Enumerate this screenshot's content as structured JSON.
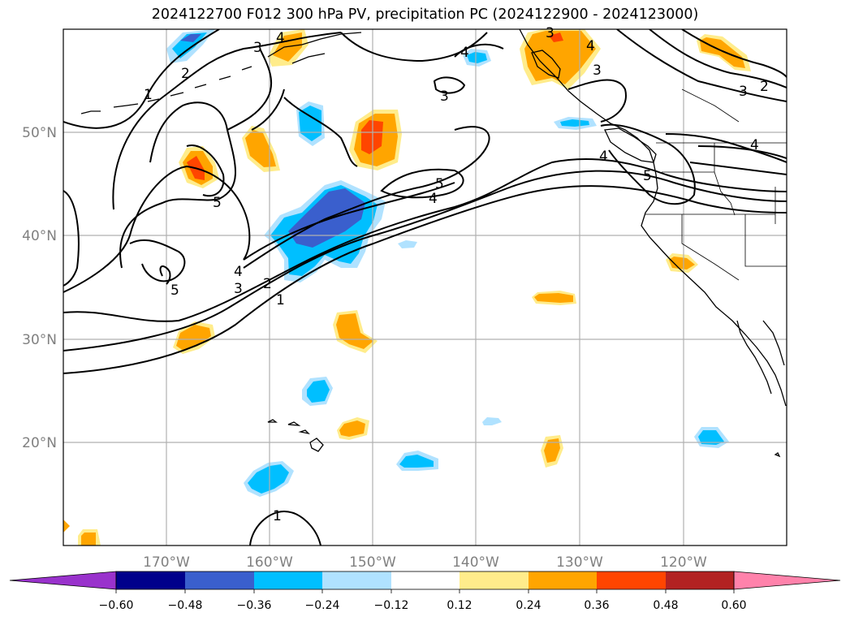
{
  "title": "2024122700 F012 300 hPa PV, precipitation PC (2024122900 - 2024123000)",
  "lon_ticks": [
    "170°W",
    "160°W",
    "150°W",
    "140°W",
    "130°W",
    "120°W"
  ],
  "lat_ticks": [
    "50°N",
    "40°N",
    "30°N",
    "20°N"
  ],
  "colorbar": {
    "colors": [
      "#9932cc",
      "#00008b",
      "#3a5fcd",
      "#00bfff",
      "#b0e2ff",
      "#ffffff",
      "#ffec8b",
      "#ffa500",
      "#ff4500",
      "#b22222",
      "#ff82ab"
    ],
    "labels": [
      "−0.60",
      "−0.48",
      "−0.36",
      "−0.24",
      "−0.12",
      "0.12",
      "0.24",
      "0.36",
      "0.48",
      "0.60"
    ]
  },
  "pv_labels": [
    "1",
    "2",
    "3",
    "4",
    "5",
    "3",
    "2",
    "1",
    "5",
    "4",
    "5",
    "4",
    "3",
    "4",
    "3",
    "3",
    "4",
    "4",
    "2",
    "3",
    "4",
    "5",
    "1"
  ],
  "colors": {
    "grid": "#b0b0b0",
    "coast": "#000000",
    "contour": "#000000"
  }
}
